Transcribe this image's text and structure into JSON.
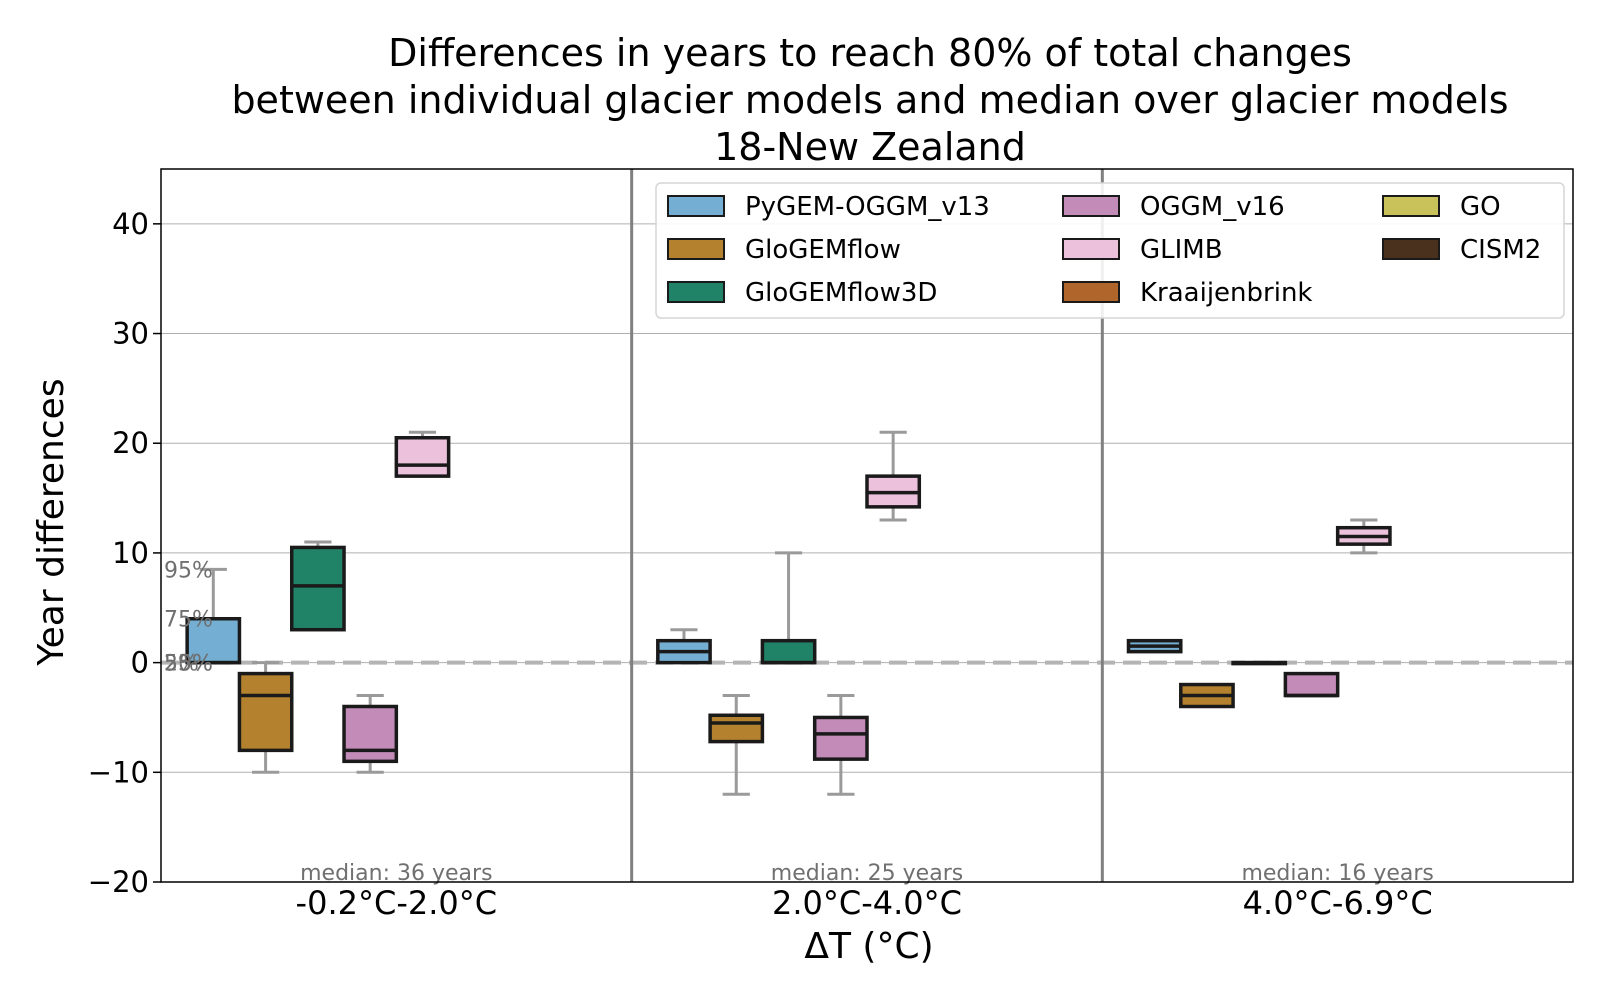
{
  "chart_data": {
    "type": "box",
    "title_lines": [
      "Differences in years to reach 80% of total changes",
      "between individual glacier models and median over glacier models",
      "18-New Zealand"
    ],
    "xlabel": "ΔT (°C)",
    "ylabel": "Year differences",
    "ylim": [
      -20,
      45
    ],
    "yticks": [
      -20,
      -10,
      0,
      10,
      20,
      30,
      40
    ],
    "ytick_labels": [
      "−20",
      "−10",
      "0",
      "10",
      "20",
      "30",
      "40"
    ],
    "grid": "horizontal",
    "reference_line": 0,
    "percentile_labels": [
      "95%",
      "75%",
      "50%",
      "25%",
      "5%"
    ],
    "legend_position": "top-right",
    "categories": [
      "-0.2°C-2.0°C",
      "2.0°C-4.0°C",
      "4.0°C-6.9°C"
    ],
    "category_notes": [
      "median: 36 years",
      "median: 25 years",
      "median: 16 years"
    ],
    "series": [
      {
        "name": "PyGEM-OGGM_v13",
        "color": "#74afd3",
        "boxes": [
          {
            "whislo": 0,
            "q1": 0,
            "med": 0,
            "q3": 4,
            "whishi": 8.5
          },
          {
            "whislo": 0,
            "q1": 0,
            "med": 1,
            "q3": 2,
            "whishi": 3
          },
          {
            "whislo": 1,
            "q1": 1,
            "med": 1.5,
            "q3": 2,
            "whishi": 2
          }
        ]
      },
      {
        "name": "GloGEMflow",
        "color": "#b4822e",
        "boxes": [
          {
            "whislo": -10,
            "q1": -8,
            "med": -3,
            "q3": -1,
            "whishi": 0
          },
          {
            "whislo": -12,
            "q1": -7.2,
            "med": -5.5,
            "q3": -4.8,
            "whishi": -3
          },
          {
            "whislo": -4,
            "q1": -4,
            "med": -3,
            "q3": -2,
            "whishi": -2
          }
        ]
      },
      {
        "name": "GloGEMflow3D",
        "color": "#208267",
        "boxes": [
          {
            "whislo": 3,
            "q1": 3,
            "med": 7,
            "q3": 10.5,
            "whishi": 11
          },
          {
            "whislo": 0,
            "q1": 0,
            "med": 0,
            "q3": 2,
            "whishi": 10
          },
          {
            "whislo": 0,
            "q1": 0,
            "med": 0,
            "q3": 0,
            "whishi": 0
          }
        ]
      },
      {
        "name": "OGGM_v16",
        "color": "#c38bb8",
        "boxes": [
          {
            "whislo": -10,
            "q1": -9,
            "med": -8,
            "q3": -4,
            "whishi": -3
          },
          {
            "whislo": -12,
            "q1": -8.8,
            "med": -6.5,
            "q3": -5,
            "whishi": -3
          },
          {
            "whislo": -3,
            "q1": -3,
            "med": -3,
            "q3": -1,
            "whishi": -1
          }
        ]
      },
      {
        "name": "GLIMB",
        "color": "#ecc1dc",
        "boxes": [
          {
            "whislo": 17,
            "q1": 17,
            "med": 18,
            "q3": 20.5,
            "whishi": 21
          },
          {
            "whislo": 13,
            "q1": 14.2,
            "med": 15.5,
            "q3": 17,
            "whishi": 21
          },
          {
            "whislo": 10,
            "q1": 10.8,
            "med": 11.5,
            "q3": 12.3,
            "whishi": 13
          }
        ]
      },
      {
        "name": "Kraaijenbrink",
        "color": "#b0652b",
        "boxes": []
      },
      {
        "name": "GO",
        "color": "#c9c25a",
        "boxes": []
      },
      {
        "name": "CISM2",
        "color": "#4a311e",
        "boxes": []
      }
    ]
  }
}
